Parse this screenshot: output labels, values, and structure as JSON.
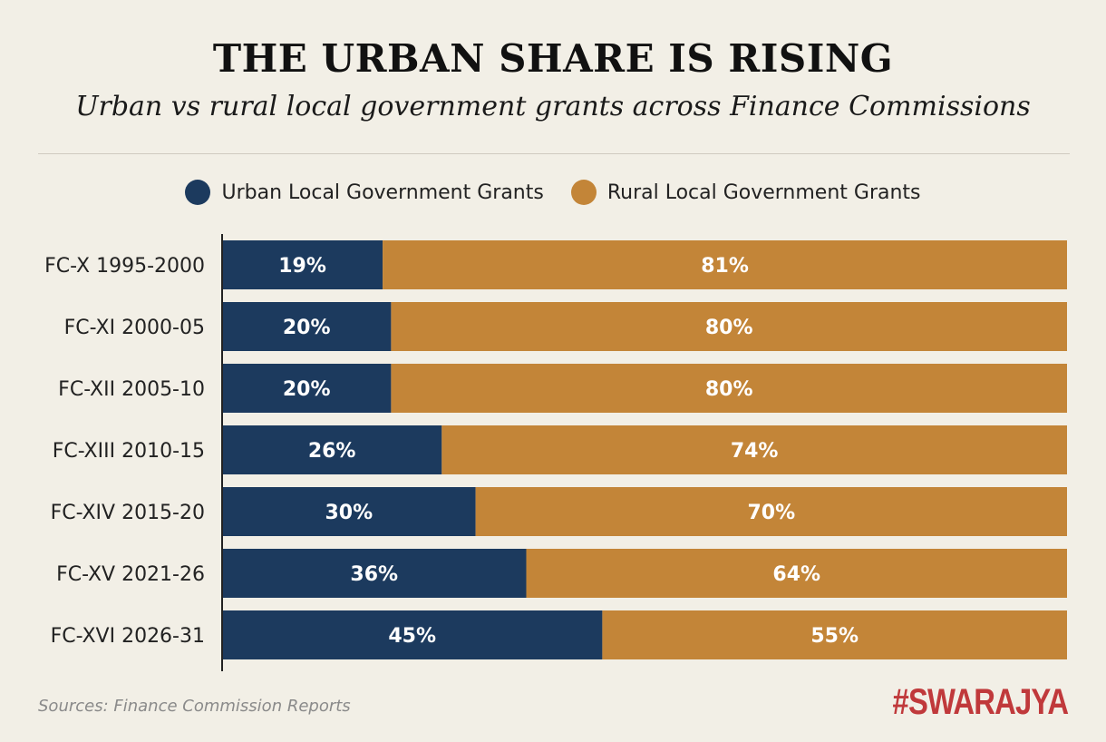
{
  "chart_data": {
    "type": "bar",
    "orientation": "horizontal",
    "stacked": true,
    "title": "THE URBAN SHARE IS RISING",
    "subtitle": "Urban vs rural local government grants across Finance Commissions",
    "categories": [
      "FC-X 1995-2000",
      "FC-XI 2000-05",
      "FC-XII 2005-10",
      "FC-XIII 2010-15",
      "FC-XIV 2015-20",
      "FC-XV 2021-26",
      "FC-XVI 2026-31"
    ],
    "series": [
      {
        "name": "Urban Local Government Grants",
        "color": "#1c3a5e",
        "values": [
          19,
          20,
          20,
          26,
          30,
          36,
          45
        ]
      },
      {
        "name": "Rural Local Government Grants",
        "color": "#c38538",
        "values": [
          81,
          80,
          80,
          74,
          70,
          64,
          55
        ]
      }
    ],
    "value_suffix": "%",
    "xlim": [
      0,
      100
    ],
    "grid": false,
    "legend_position": "top"
  },
  "footer": {
    "source": "Sources: Finance Commission Reports",
    "brand": "#SWARAJYA"
  }
}
